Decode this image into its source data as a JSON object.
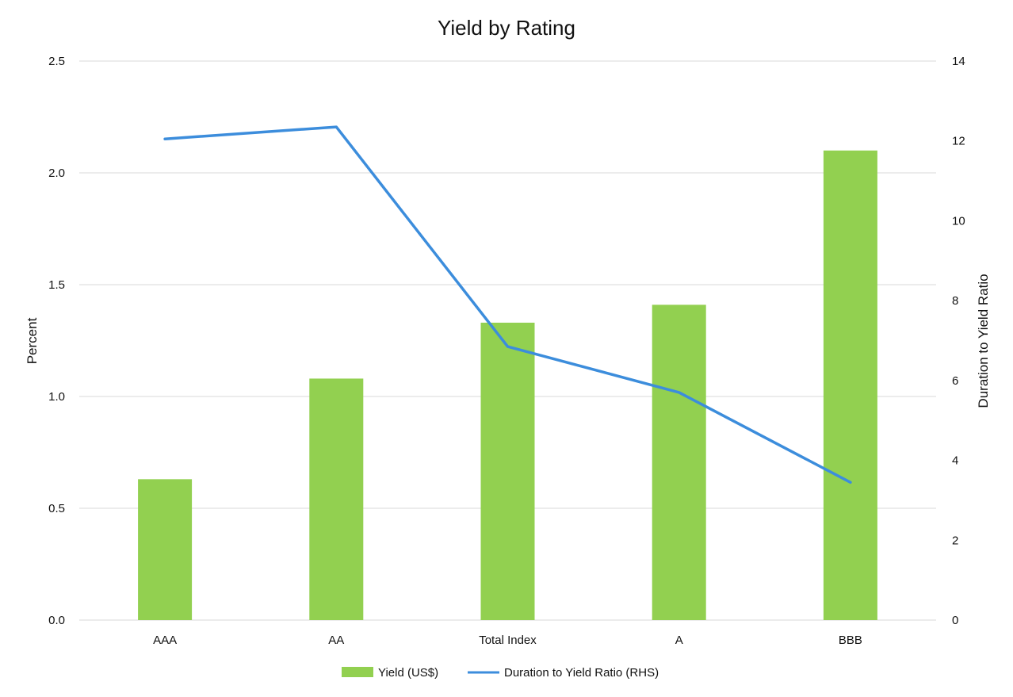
{
  "chart_data": {
    "type": "bar",
    "title": "Yield by Rating",
    "categories": [
      "AAA",
      "AA",
      "Total Index",
      "A",
      "BBB"
    ],
    "series": [
      {
        "name": "Yield (US$)",
        "type": "bar",
        "axis": "left",
        "values": [
          0.63,
          1.08,
          1.33,
          1.41,
          2.1
        ]
      },
      {
        "name": "Duration to Yield Ratio (RHS)",
        "type": "line",
        "axis": "right",
        "values": [
          12.05,
          12.35,
          6.85,
          5.7,
          3.45
        ]
      }
    ],
    "ylabel": "Percent",
    "ylim": [
      0,
      2.5
    ],
    "yticks": [
      "0.0",
      "0.5",
      "1.0",
      "1.5",
      "2.0",
      "2.5"
    ],
    "y2label": "Duration to Yield Ratio",
    "y2lim": [
      0,
      14
    ],
    "y2ticks": [
      "0",
      "2",
      "4",
      "6",
      "8",
      "10",
      "12",
      "14"
    ],
    "grid": true,
    "legend_position": "bottom",
    "colors": {
      "bar": "#92d050",
      "line": "#3c8ddc",
      "grid": "#d9d9d9"
    }
  }
}
